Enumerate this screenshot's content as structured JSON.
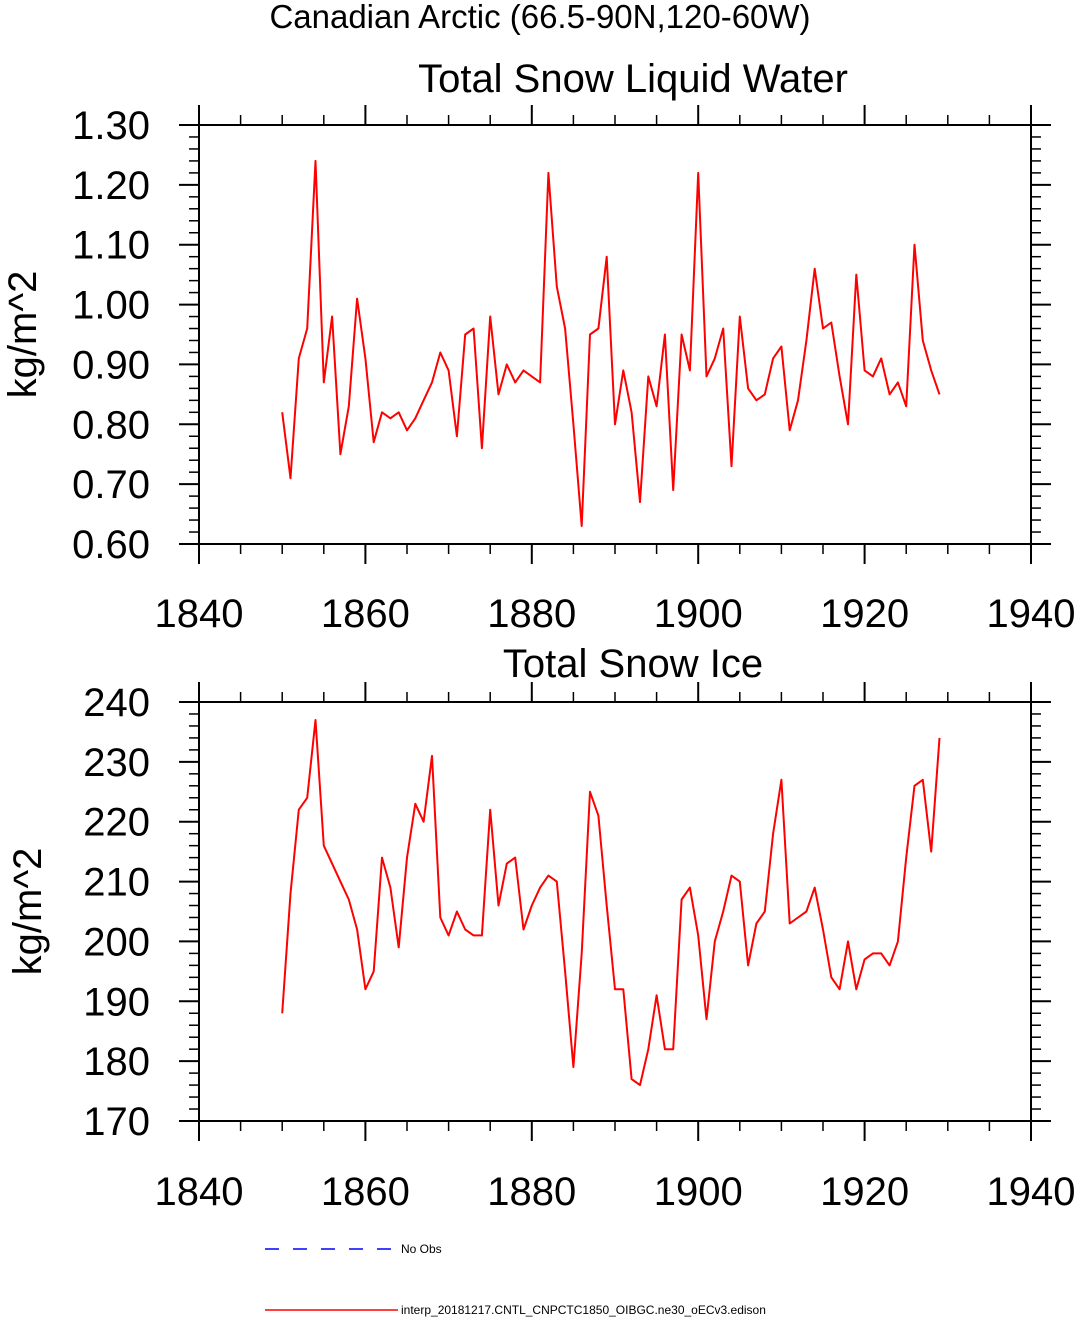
{
  "figure": {
    "suptitle": "Canadian Arctic (66.5-90N,120-60W)",
    "line_color": "#ff0000",
    "obs_color": "#0000ff"
  },
  "legend": {
    "entries": [
      {
        "label": "No Obs",
        "color": "#0000ff",
        "style": "dashed"
      },
      {
        "label": "interp_20181217.CNTL_CNPCTC1850_OIBGC.ne30_oECv3.edison",
        "color": "#ff0000",
        "style": "solid"
      }
    ]
  },
  "chart_data": [
    {
      "type": "line",
      "title": "Total Snow Liquid Water",
      "xlabel": "",
      "ylabel": "kg/m^2",
      "xlim": [
        1840,
        1940
      ],
      "ylim": [
        0.6,
        1.3
      ],
      "xticks": [
        "1840",
        "1860",
        "1880",
        "1900",
        "1920",
        "1940"
      ],
      "yticks": [
        "0.60",
        "0.70",
        "0.80",
        "0.90",
        "1.00",
        "1.10",
        "1.20",
        "1.30"
      ],
      "x_start": 1850,
      "series": [
        {
          "values": [
            0.82,
            0.71,
            0.91,
            0.96,
            1.24,
            0.87,
            0.98,
            0.75,
            0.83,
            1.01,
            0.91,
            0.77,
            0.82,
            0.81,
            0.82,
            0.79,
            0.81,
            0.84,
            0.87,
            0.92,
            0.89,
            0.78,
            0.95,
            0.96,
            0.76,
            0.98,
            0.85,
            0.9,
            0.87,
            0.89,
            0.88,
            0.87,
            1.22,
            1.03,
            0.96,
            0.8,
            0.63,
            0.95,
            0.96,
            1.08,
            0.8,
            0.89,
            0.82,
            0.67,
            0.88,
            0.83,
            0.95,
            0.69,
            0.95,
            0.89,
            1.22,
            0.88,
            0.91,
            0.96,
            0.73,
            0.98,
            0.86,
            0.84,
            0.85,
            0.91,
            0.93,
            0.79,
            0.84,
            0.94,
            1.06,
            0.96,
            0.97,
            0.88,
            0.8,
            1.05,
            0.89,
            0.88,
            0.91,
            0.85,
            0.87,
            0.83,
            1.1,
            0.94,
            0.89,
            0.85
          ]
        }
      ]
    },
    {
      "type": "line",
      "title": "Total Snow Ice",
      "xlabel": "",
      "ylabel": "kg/m^2",
      "xlim": [
        1840,
        1940
      ],
      "ylim": [
        170,
        240
      ],
      "xticks": [
        "1840",
        "1860",
        "1880",
        "1900",
        "1920",
        "1940"
      ],
      "yticks": [
        "170",
        "180",
        "190",
        "200",
        "210",
        "220",
        "230",
        "240"
      ],
      "x_start": 1850,
      "series": [
        {
          "values": [
            188,
            208,
            222,
            224,
            237,
            216,
            213,
            210,
            207,
            202,
            192,
            195,
            214,
            209,
            199,
            214,
            223,
            220,
            231,
            204,
            201,
            205,
            202,
            201,
            201,
            222,
            206,
            213,
            214,
            202,
            206,
            209,
            211,
            210,
            195,
            179,
            198,
            225,
            221,
            206,
            192,
            192,
            177,
            176,
            182,
            191,
            182,
            182,
            207,
            209,
            201,
            187,
            200,
            205,
            211,
            210,
            196,
            203,
            205,
            218,
            227,
            203,
            204,
            205,
            209,
            202,
            194,
            192,
            200,
            192,
            197,
            198,
            198,
            196,
            200,
            214,
            226,
            227,
            215,
            234
          ]
        }
      ]
    }
  ]
}
